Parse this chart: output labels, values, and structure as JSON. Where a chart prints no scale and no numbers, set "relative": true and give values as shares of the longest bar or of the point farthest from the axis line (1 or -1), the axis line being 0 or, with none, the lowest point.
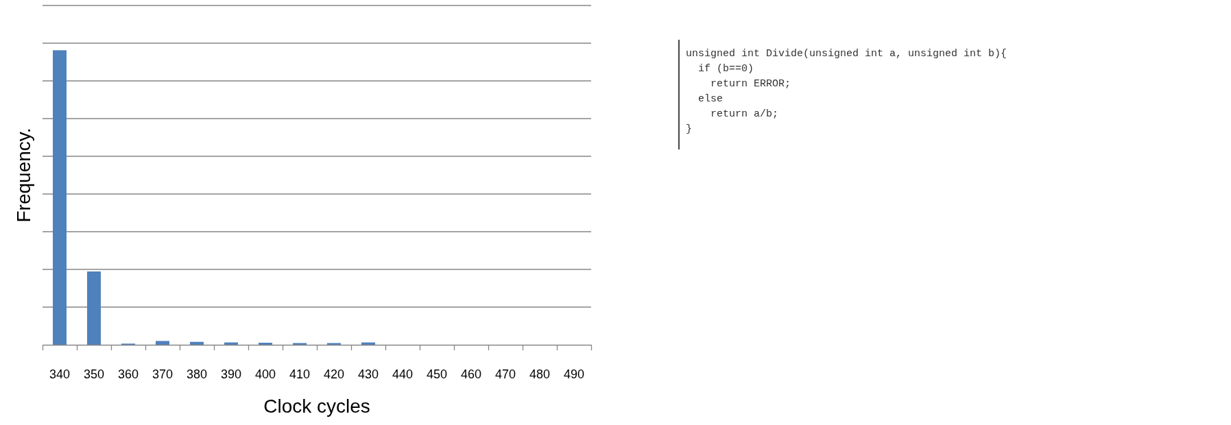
{
  "chart_data": {
    "type": "bar",
    "relative": true,
    "xlabel": "Clock cycles",
    "ylabel": "Frequency.",
    "grid": "y",
    "categories": [
      "340",
      "350",
      "360",
      "370",
      "380",
      "390",
      "400",
      "410",
      "420",
      "430",
      "440",
      "450",
      "460",
      "470",
      "480",
      "490"
    ],
    "values": [
      1,
      0.249,
      0.004,
      0.013,
      0.01,
      0.008,
      0.007,
      0.006,
      0.006,
      0.008,
      0,
      0,
      0,
      0,
      0,
      0
    ],
    "color": "#4f81bd",
    "annotations": [
      "unsigned int Divide(unsigned int a, unsigned int b){",
      "  if (b==0)",
      "    return ERROR;",
      "  else",
      "    return a/b;",
      "}"
    ]
  }
}
